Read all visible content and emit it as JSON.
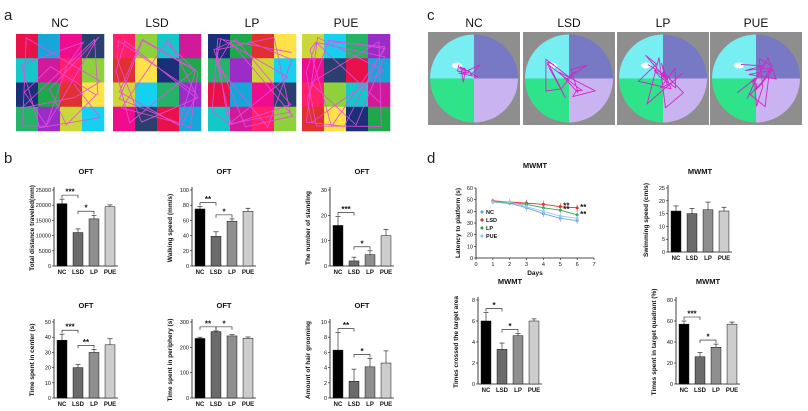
{
  "panels": {
    "a": "a",
    "b": "b",
    "c": "c",
    "d": "d"
  },
  "panel_a": {
    "groups": [
      "NC",
      "LSD",
      "LP",
      "PUE"
    ],
    "grid_colors": [
      [
        "#e8114a",
        "#16a6d8",
        "#f00d8d",
        "#2a3f6e"
      ],
      [
        "#14c8c8",
        "#d11a9a",
        "#ff1f6b",
        "#8fd13d"
      ],
      [
        "#1b2e78",
        "#1ea84a",
        "#e03030",
        "#ffe14a"
      ],
      [
        "#25b36a",
        "#9b2cc8",
        "#ccd83a",
        "#16d0f0"
      ]
    ]
  },
  "panel_c": {
    "groups": [
      "NC",
      "LSD",
      "LP",
      "PUE"
    ],
    "quadrant_colors": {
      "tl": "#76eef2",
      "tr": "#7779c4",
      "bl": "#2fe38a",
      "br": "#c9b3f0"
    },
    "tank_color": "#8e8e8e",
    "path_color": "#d226c8"
  },
  "colors": {
    "NC": "#000000",
    "LSD": "#6b6b6b",
    "LP": "#8f8f8f",
    "PUE": "#cdcdcd"
  },
  "chart_data": [
    {
      "type": "bar",
      "title": "OFT",
      "ylabel": "Total distance traveled(mm)",
      "categories": [
        "NC",
        "LSD",
        "LP",
        "PUE"
      ],
      "values": [
        20500,
        11000,
        15500,
        19500
      ],
      "errors": [
        1500,
        1200,
        1200,
        600
      ],
      "ylim": [
        0,
        25000
      ],
      "yticks": [
        0,
        5000,
        10000,
        15000,
        20000,
        25000
      ],
      "yticklabels": [
        "0",
        "5000",
        "10000",
        "15000",
        "20000",
        "25000"
      ],
      "significance": [
        {
          "pair": [
            0,
            1
          ],
          "label": "***"
        },
        {
          "pair": [
            1,
            2
          ],
          "label": "*"
        }
      ]
    },
    {
      "type": "bar",
      "title": "OFT",
      "ylabel": "Walking speed (mm/s)",
      "categories": [
        "NC",
        "LSD",
        "LP",
        "PUE"
      ],
      "values": [
        75,
        39,
        59,
        72
      ],
      "errors": [
        3,
        6,
        3,
        4
      ],
      "ylim": [
        0,
        100
      ],
      "yticks": [
        0,
        20,
        40,
        60,
        80,
        100
      ],
      "yticklabels": [
        "0",
        "20",
        "40",
        "60",
        "80",
        "100"
      ],
      "significance": [
        {
          "pair": [
            0,
            1
          ],
          "label": "**"
        },
        {
          "pair": [
            1,
            2
          ],
          "label": "*"
        }
      ]
    },
    {
      "type": "bar",
      "title": "OFT",
      "ylabel": "The number of standing",
      "categories": [
        "NC",
        "LSD",
        "LP",
        "PUE"
      ],
      "values": [
        16,
        2,
        4.5,
        12
      ],
      "errors": [
        3.5,
        1.5,
        1.5,
        2.5
      ],
      "ylim": [
        0,
        30
      ],
      "yticks": [
        0,
        10,
        20,
        30
      ],
      "yticklabels": [
        "0",
        "10",
        "20",
        "30"
      ],
      "significance": [
        {
          "pair": [
            0,
            1
          ],
          "label": "***"
        },
        {
          "pair": [
            1,
            2
          ],
          "label": "*"
        }
      ]
    },
    {
      "type": "bar",
      "title": "OFT",
      "ylabel": "Time spent in center (s)",
      "categories": [
        "NC",
        "LSD",
        "LP",
        "PUE"
      ],
      "values": [
        38,
        20,
        30,
        35
      ],
      "errors": [
        4,
        2,
        2,
        4
      ],
      "ylim": [
        0,
        50
      ],
      "yticks": [
        0,
        10,
        20,
        30,
        40,
        50
      ],
      "yticklabels": [
        "0",
        "10",
        "20",
        "30",
        "40",
        "50"
      ],
      "significance": [
        {
          "pair": [
            0,
            1
          ],
          "label": "***"
        },
        {
          "pair": [
            1,
            2
          ],
          "label": "**"
        }
      ]
    },
    {
      "type": "bar",
      "title": "OFT",
      "ylabel": "Time spent in periphery (s)",
      "categories": [
        "NC",
        "LSD",
        "LP",
        "PUE"
      ],
      "values": [
        235,
        262,
        245,
        236
      ],
      "errors": [
        5,
        3,
        5,
        5
      ],
      "ylim": [
        0,
        300
      ],
      "yticks": [
        0,
        100,
        200,
        300
      ],
      "yticklabels": [
        "0",
        "100",
        "200",
        "300"
      ],
      "significance": [
        {
          "pair": [
            0,
            1
          ],
          "label": "**"
        },
        {
          "pair": [
            1,
            2
          ],
          "label": "*"
        }
      ]
    },
    {
      "type": "bar",
      "title": "OFT",
      "ylabel": "Amount of hair grooming",
      "categories": [
        "NC",
        "LSD",
        "LP",
        "PUE"
      ],
      "values": [
        6.3,
        2.2,
        4.1,
        4.6
      ],
      "errors": [
        2.3,
        1.6,
        1.1,
        1.6
      ],
      "ylim": [
        0,
        10
      ],
      "yticks": [
        0,
        2,
        4,
        6,
        8,
        10
      ],
      "yticklabels": [
        "0",
        "2",
        "4",
        "6",
        "8",
        "10"
      ],
      "significance": [
        {
          "pair": [
            0,
            1
          ],
          "label": "**"
        },
        {
          "pair": [
            1,
            2
          ],
          "label": "*"
        }
      ]
    },
    {
      "type": "line",
      "title": "MWMT",
      "xlabel": "Days",
      "ylabel": "Latency to platform (s)",
      "x": [
        1,
        2,
        3,
        4,
        5,
        6
      ],
      "xlim": [
        0,
        7
      ],
      "xticks": [
        0,
        1,
        2,
        3,
        4,
        5,
        6,
        7
      ],
      "xticklabels": [
        "0",
        "1",
        "2",
        "3",
        "4",
        "5",
        "6",
        "7"
      ],
      "ylim": [
        0,
        60
      ],
      "yticks": [
        0,
        10,
        20,
        30,
        40,
        50,
        60
      ],
      "yticklabels": [
        "0",
        "10",
        "20",
        "30",
        "40",
        "50",
        "60"
      ],
      "series": [
        {
          "name": "NC",
          "color": "#6fa0e0",
          "values": [
            48,
            47,
            43,
            38,
            34,
            32
          ],
          "errors": [
            2,
            2,
            3,
            3,
            3,
            3
          ]
        },
        {
          "name": "LSD",
          "color": "#e03030",
          "values": [
            49,
            48,
            47,
            46,
            44,
            43
          ],
          "errors": [
            2,
            3,
            3,
            3,
            3,
            3
          ]
        },
        {
          "name": "LP",
          "color": "#2ea84a",
          "values": [
            48,
            47,
            46,
            43,
            41,
            37
          ],
          "errors": [
            2,
            2,
            3,
            3,
            3,
            3
          ]
        },
        {
          "name": "PUE",
          "color": "#9cc8f0",
          "values": [
            48,
            48,
            44,
            40,
            36,
            34
          ],
          "errors": [
            2,
            3,
            3,
            3,
            3,
            3
          ]
        }
      ],
      "annotations": [
        {
          "x": 5,
          "y": 44,
          "label": "**"
        },
        {
          "x": 5,
          "y": 41,
          "label": "**"
        },
        {
          "x": 6,
          "y": 43,
          "label": "**"
        },
        {
          "x": 6,
          "y": 37,
          "label": "**"
        }
      ]
    },
    {
      "type": "bar",
      "title": "MWMT",
      "ylabel": "Swimming speed (cm/s)",
      "categories": [
        "NC",
        "LSD",
        "LP",
        "PUE"
      ],
      "values": [
        16,
        15,
        16.5,
        16
      ],
      "errors": [
        2,
        2,
        3,
        1.5
      ],
      "ylim": [
        0,
        25
      ],
      "yticks": [
        0,
        5,
        10,
        15,
        20,
        25
      ],
      "yticklabels": [
        "0",
        "5",
        "10",
        "15",
        "20",
        "25"
      ],
      "significance": []
    },
    {
      "type": "bar",
      "title": "MWMT",
      "ylabel": "Times crossed the target area",
      "categories": [
        "NC",
        "LSD",
        "LP",
        "PUE"
      ],
      "values": [
        6,
        3.3,
        4.6,
        6
      ],
      "errors": [
        0.8,
        0.6,
        0.2,
        0.2
      ],
      "ylim": [
        0,
        8
      ],
      "yticks": [
        0,
        2,
        4,
        6,
        8
      ],
      "yticklabels": [
        "0",
        "2",
        "4",
        "6",
        "8"
      ],
      "significance": [
        {
          "pair": [
            0,
            1
          ],
          "label": "*"
        },
        {
          "pair": [
            1,
            2
          ],
          "label": "*"
        }
      ]
    },
    {
      "type": "bar",
      "title": "MWMT",
      "ylabel": "Times spent in target quadrant (%)",
      "categories": [
        "NC",
        "LSD",
        "LP",
        "PUE"
      ],
      "values": [
        57,
        26,
        35,
        57
      ],
      "errors": [
        3,
        4,
        3,
        2
      ],
      "ylim": [
        0,
        80
      ],
      "yticks": [
        0,
        20,
        40,
        60,
        80
      ],
      "yticklabels": [
        "0",
        "20",
        "40",
        "60",
        "80"
      ],
      "significance": [
        {
          "pair": [
            0,
            1
          ],
          "label": "***"
        },
        {
          "pair": [
            1,
            2
          ],
          "label": "*"
        }
      ]
    }
  ]
}
